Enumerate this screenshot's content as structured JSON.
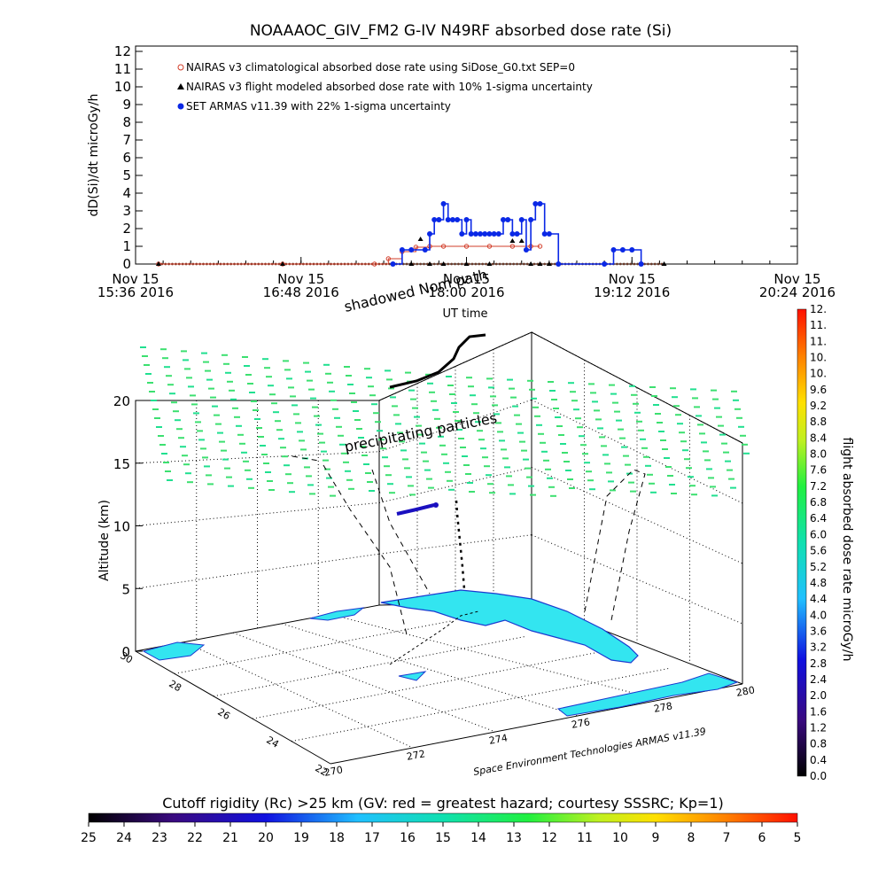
{
  "title": "NOAAAOC_GIV_FM2 G-IV   N49RF  absorbed dose rate (Si)",
  "chart_data": [
    {
      "type": "line",
      "ylabel": "dD(Si)/dt microGy/h",
      "xlabel": "UT time",
      "ylim": [
        0,
        12
      ],
      "yticks": [
        "0",
        "1",
        "2",
        "3",
        "4",
        "5",
        "6",
        "7",
        "8",
        "9",
        "10",
        "11",
        "12"
      ],
      "xlim_min": [
        936,
        1224
      ],
      "xticks": [
        {
          "t": 936,
          "l1": "Nov 15",
          "l2": "15:36 2016"
        },
        {
          "t": 1008,
          "l1": "Nov 15",
          "l2": "16:48 2016"
        },
        {
          "t": 1080,
          "l1": "Nov 15",
          "l2": "18:00 2016"
        },
        {
          "t": 1152,
          "l1": "Nov 15",
          "l2": "19:12 2016"
        },
        {
          "t": 1224,
          "l1": "Nov 15",
          "l2": "20:24 2016"
        }
      ],
      "legend_position": "top-left",
      "series": [
        {
          "name": "NAIRAS v3 climatological absorbed dose rate using SiDose_G0.txt SEP=0",
          "color": "#d23c28",
          "marker": "diamond",
          "x": [
            946,
            1000,
            1040,
            1046,
            1052,
            1058,
            1064,
            1070,
            1080,
            1090,
            1100,
            1108,
            1112
          ],
          "y": [
            0,
            0,
            0,
            0.3,
            0.7,
            0.95,
            1.0,
            1.0,
            1.0,
            1.0,
            1.0,
            1.0,
            1.0
          ]
        },
        {
          "name": "NAIRAS v3 flight modeled absorbed dose rate with 10% 1-sigma uncertainty",
          "color": "#000000",
          "marker": "triangle",
          "x": [
            946,
            1000,
            1056,
            1060,
            1064,
            1070,
            1080,
            1090,
            1100,
            1104,
            1108,
            1112,
            1116,
            1166
          ],
          "y": [
            0,
            0,
            0,
            1.4,
            0,
            0,
            0,
            0,
            1.3,
            1.3,
            0,
            0,
            0,
            0
          ]
        },
        {
          "name": "SET ARMAS v11.39 with 22% 1-sigma uncertainty",
          "color": "#0a28e6",
          "marker": "circle",
          "x": [
            1048,
            1052,
            1056,
            1062,
            1064,
            1066,
            1068,
            1070,
            1072,
            1074,
            1076,
            1078,
            1080,
            1082,
            1084,
            1086,
            1088,
            1090,
            1092,
            1094,
            1096,
            1098,
            1100,
            1102,
            1104,
            1106,
            1108,
            1110,
            1112,
            1114,
            1116,
            1120,
            1140,
            1144,
            1148,
            1152,
            1156
          ],
          "y": [
            0,
            0.8,
            0.8,
            0.8,
            1.7,
            2.5,
            2.5,
            3.4,
            2.5,
            2.5,
            2.5,
            1.7,
            2.5,
            1.7,
            1.7,
            1.7,
            1.7,
            1.7,
            1.7,
            1.7,
            2.5,
            2.5,
            1.7,
            1.7,
            2.5,
            0.8,
            2.5,
            3.4,
            3.4,
            1.7,
            1.7,
            0,
            0,
            0.8,
            0.8,
            0.8,
            0
          ]
        }
      ]
    },
    {
      "type": "scatter",
      "subtype": "3d-flight-track",
      "zlabel": "Altitude (km)",
      "zticks": [
        "0",
        "5",
        "10",
        "15",
        "20"
      ],
      "lat_ticks": [
        "30",
        "28",
        "26",
        "24",
        "22"
      ],
      "lon_ticks": [
        "270",
        "272",
        "274",
        "276",
        "278",
        "280"
      ],
      "annotations": [
        "shadowed Nom path",
        "precipitating particles",
        "Space Environment Technologies ARMAS v11.39"
      ],
      "colorbar": {
        "label": "flight absorbed dose rate microGy/h",
        "ticks": [
          "0.0",
          "0.4",
          "0.8",
          "1.2",
          "1.6",
          "2.0",
          "2.4",
          "2.8",
          "3.2",
          "3.6",
          "4.0",
          "4.4",
          "4.8",
          "5.2",
          "5.6",
          "6.0",
          "6.4",
          "6.8",
          "7.2",
          "7.6",
          "8.0",
          "8.4",
          "8.8",
          "9.2",
          "9.6",
          "10.",
          "10.",
          "11.",
          "11.",
          "12."
        ]
      },
      "rigidity_bar": {
        "label": "Cutoff rigidity (Rc) >25 km (GV: red = greatest hazard; courtesy SSSRC; Kp=1)",
        "ticks": [
          "25",
          "24",
          "23",
          "22",
          "21",
          "20",
          "19",
          "18",
          "17",
          "16",
          "15",
          "14",
          "13",
          "12",
          "11",
          "10",
          "9",
          "8",
          "7",
          "6",
          "5"
        ]
      }
    }
  ]
}
